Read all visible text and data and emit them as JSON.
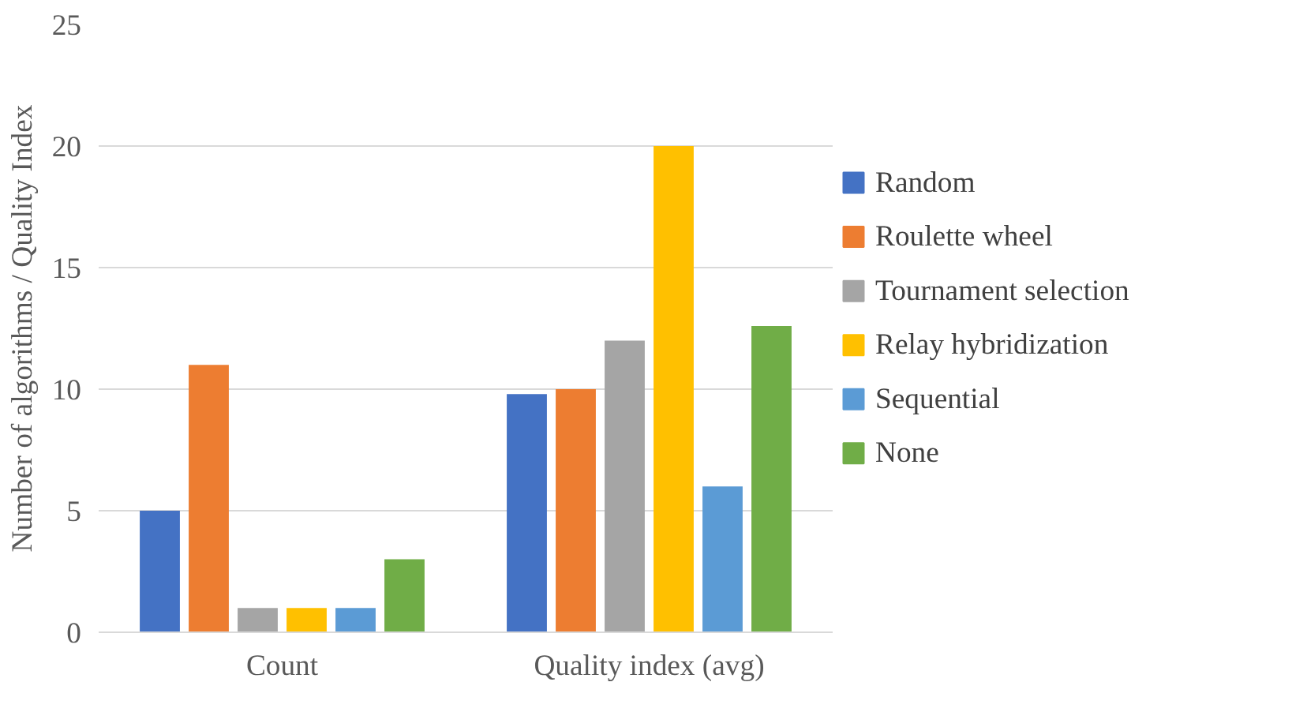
{
  "chart_data": {
    "type": "bar",
    "ylabel": "Number of algorithms / Quality Index",
    "categories": [
      "Count",
      "Quality index (avg)"
    ],
    "series": [
      {
        "name": "Random",
        "color": "#4472c4",
        "values": [
          5,
          9.8
        ]
      },
      {
        "name": "Roulette wheel",
        "color": "#ed7d31",
        "values": [
          11,
          10
        ]
      },
      {
        "name": "Tournament selection",
        "color": "#a5a5a5",
        "values": [
          1,
          12
        ]
      },
      {
        "name": "Relay hybridization",
        "color": "#ffc000",
        "values": [
          1,
          20
        ]
      },
      {
        "name": "Sequential",
        "color": "#5b9bd5",
        "values": [
          1,
          6
        ]
      },
      {
        "name": "None",
        "color": "#70ad47",
        "values": [
          3,
          12.6
        ]
      }
    ],
    "ylim": [
      0,
      25
    ],
    "yticks": [
      0,
      5,
      10,
      15,
      20,
      25
    ],
    "grid": "y",
    "legend": "right"
  }
}
